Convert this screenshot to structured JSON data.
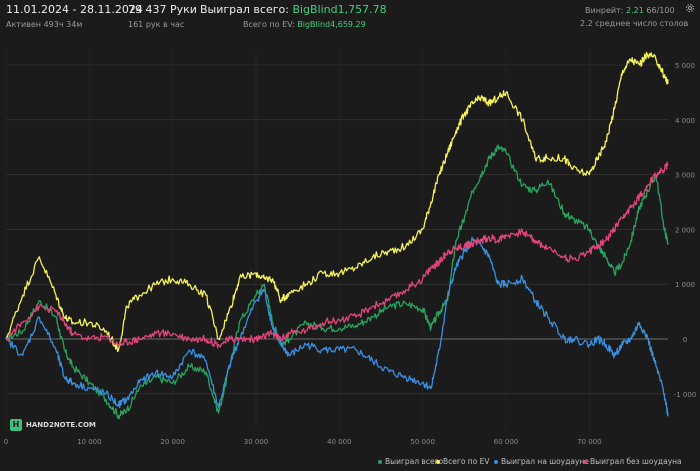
{
  "header": {
    "date_range": "11.01.2024 - 28.11.2024",
    "active": "Активен 493ч 34м",
    "hands": "79 437 Руки",
    "hands_per_hour": "161 рук в час",
    "won_total_label": "Выиграл всего:",
    "won_total_value": "BigBlind1,757.78",
    "ev_total_label": "Всего по EV:",
    "ev_total_value": "BigBlind4,659.29",
    "winrate_label": "Винрейт:",
    "winrate_value": "2.21",
    "winrate_extra": "66/100",
    "avg_tables": "2.2 среднее число столов"
  },
  "logo": {
    "text": "HAND2NOTE.COM",
    "mark": "H"
  },
  "colors": {
    "background": "#1b1b1b",
    "grid": "#3a3a3a",
    "zero_line": "#8a8a8a",
    "won": "#27a35f",
    "ev": "#f5f25a",
    "showdown": "#3a8fe0",
    "non_showdown": "#e0457b"
  },
  "chart_data": {
    "type": "line",
    "xlim": [
      0,
      79437
    ],
    "ylim": [
      -1500,
      5300
    ],
    "x_ticks": [
      0,
      10000,
      20000,
      30000,
      40000,
      50000,
      60000,
      70000
    ],
    "x_tick_labels": [
      "0",
      "10 000",
      "20 000",
      "30 000",
      "40 000",
      "50 000",
      "60 000",
      "70 000"
    ],
    "y_ticks": [
      5000,
      4000,
      3000,
      2000,
      1000,
      0,
      -1000
    ],
    "y_tick_labels": [
      "5 000",
      "4 000",
      "3 000",
      "2 000",
      "1 000",
      "0",
      "-1 000"
    ],
    "grid": true,
    "legend_position": "bottom-right",
    "x": [
      0,
      2000,
      4000,
      6000,
      7000,
      8000,
      10000,
      12000,
      13500,
      14500,
      16000,
      18000,
      20000,
      22000,
      24000,
      25500,
      27000,
      28000,
      30000,
      31000,
      32000,
      33000,
      34000,
      36000,
      38000,
      40000,
      42000,
      44000,
      46000,
      48000,
      50000,
      51000,
      52000,
      53000,
      54000,
      55000,
      56000,
      57000,
      58000,
      59000,
      60000,
      62000,
      63500,
      65000,
      67000,
      68000,
      70000,
      71000,
      72000,
      73000,
      74000,
      75000,
      76000,
      77000,
      78000,
      79000,
      79437
    ],
    "series": [
      {
        "name": "Выиграл всего",
        "color": "#27a35f",
        "values": [
          0,
          150,
          700,
          400,
          -200,
          -500,
          -800,
          -1100,
          -1400,
          -1300,
          -900,
          -700,
          -800,
          -500,
          -600,
          -1350,
          -400,
          300,
          800,
          1000,
          300,
          -100,
          0,
          300,
          200,
          200,
          250,
          400,
          600,
          650,
          550,
          200,
          500,
          700,
          1800,
          2200,
          2700,
          3000,
          3300,
          3500,
          3400,
          2800,
          2700,
          2900,
          2300,
          2200,
          2000,
          1700,
          1500,
          1200,
          1400,
          1800,
          2400,
          2700,
          3000,
          2000,
          1757.78
        ]
      },
      {
        "name": "Всего по EV",
        "color": "#f5f25a",
        "values": [
          0,
          800,
          1500,
          800,
          400,
          300,
          300,
          150,
          -200,
          600,
          800,
          1000,
          1100,
          1000,
          800,
          0,
          600,
          1100,
          1200,
          1100,
          1100,
          700,
          850,
          1000,
          1200,
          1200,
          1300,
          1500,
          1600,
          1700,
          2000,
          2500,
          3000,
          3400,
          3800,
          4100,
          4300,
          4400,
          4300,
          4400,
          4500,
          4000,
          3300,
          3300,
          3300,
          3100,
          3000,
          3300,
          3600,
          4200,
          4900,
          5100,
          5000,
          5200,
          5100,
          4800,
          4659.29
        ]
      },
      {
        "name": "Выиграл на шоудауне",
        "color": "#3a8fe0",
        "values": [
          0,
          -300,
          400,
          -200,
          -700,
          -800,
          -900,
          -1000,
          -1200,
          -1100,
          -800,
          -600,
          -700,
          -200,
          -400,
          -1250,
          -400,
          0,
          700,
          900,
          200,
          -100,
          -300,
          -100,
          -200,
          -200,
          -200,
          -400,
          -600,
          -700,
          -800,
          -900,
          -200,
          800,
          1300,
          1600,
          1800,
          1700,
          1500,
          1000,
          1000,
          1100,
          700,
          400,
          0,
          0,
          -100,
          0,
          -100,
          -300,
          -100,
          0,
          300,
          0,
          -500,
          -1000,
          -1400
        ]
      },
      {
        "name": "Выиграл без шоудауна",
        "color": "#e0457b",
        "values": [
          0,
          300,
          600,
          500,
          300,
          100,
          0,
          50,
          -100,
          -50,
          0,
          100,
          100,
          0,
          0,
          -100,
          0,
          0,
          0,
          50,
          100,
          0,
          100,
          150,
          300,
          350,
          400,
          600,
          700,
          900,
          1100,
          1300,
          1400,
          1600,
          1650,
          1700,
          1750,
          1800,
          1850,
          1800,
          1900,
          1950,
          1800,
          1650,
          1500,
          1450,
          1600,
          1700,
          1800,
          2000,
          2200,
          2400,
          2600,
          2800,
          3000,
          3100,
          3200
        ]
      }
    ]
  }
}
